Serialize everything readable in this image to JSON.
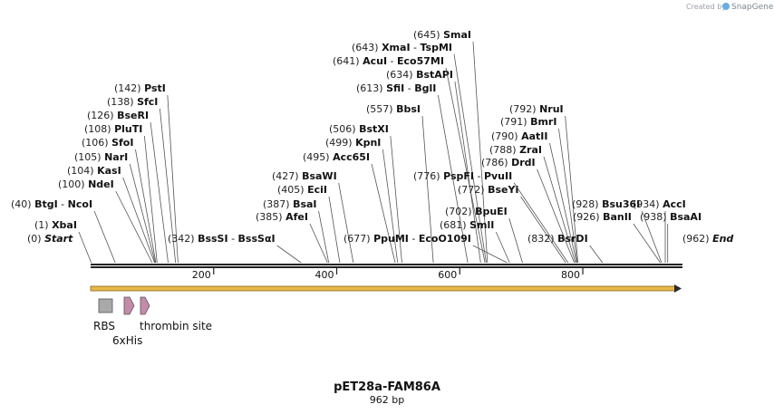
{
  "credit": {
    "prefix": "Created by",
    "brand": "SnapGene"
  },
  "map": {
    "name": "pET28a-FAM86A",
    "length_label": "962 bp",
    "length_bp": 962
  },
  "ticks": [
    200,
    400,
    600,
    800
  ],
  "sites": [
    {
      "pos": "(0)",
      "names": [
        "Start"
      ],
      "bp": 0,
      "italic": true
    },
    {
      "pos": "(1)",
      "names": [
        "XbaI"
      ],
      "bp": 1
    },
    {
      "pos": "(40)",
      "names": [
        "BtgI",
        "NcoI"
      ],
      "bp": 40
    },
    {
      "pos": "(100)",
      "names": [
        "NdeI"
      ],
      "bp": 100
    },
    {
      "pos": "(104)",
      "names": [
        "KasI"
      ],
      "bp": 104
    },
    {
      "pos": "(105)",
      "names": [
        "NarI"
      ],
      "bp": 105
    },
    {
      "pos": "(106)",
      "names": [
        "SfoI"
      ],
      "bp": 106
    },
    {
      "pos": "(108)",
      "names": [
        "PluTI"
      ],
      "bp": 108
    },
    {
      "pos": "(126)",
      "names": [
        "BseRI"
      ],
      "bp": 126
    },
    {
      "pos": "(138)",
      "names": [
        "SfcI"
      ],
      "bp": 138
    },
    {
      "pos": "(142)",
      "names": [
        "PstI"
      ],
      "bp": 142
    },
    {
      "pos": "(342)",
      "names": [
        "BssSI",
        "BssSαI"
      ],
      "bp": 342
    },
    {
      "pos": "(385)",
      "names": [
        "AfeI"
      ],
      "bp": 385
    },
    {
      "pos": "(387)",
      "names": [
        "BsaI"
      ],
      "bp": 387
    },
    {
      "pos": "(405)",
      "names": [
        "EciI"
      ],
      "bp": 405
    },
    {
      "pos": "(427)",
      "names": [
        "BsaWI"
      ],
      "bp": 427
    },
    {
      "pos": "(495)",
      "names": [
        "Acc65I"
      ],
      "bp": 495
    },
    {
      "pos": "(499)",
      "names": [
        "KpnI"
      ],
      "bp": 499
    },
    {
      "pos": "(506)",
      "names": [
        "BstXI"
      ],
      "bp": 506
    },
    {
      "pos": "(557)",
      "names": [
        "BbsI"
      ],
      "bp": 557
    },
    {
      "pos": "(613)",
      "names": [
        "SfiI",
        "BglI"
      ],
      "bp": 613
    },
    {
      "pos": "(634)",
      "names": [
        "BstAPI"
      ],
      "bp": 634
    },
    {
      "pos": "(641)",
      "names": [
        "AcuI",
        "Eco57MI"
      ],
      "bp": 641
    },
    {
      "pos": "(643)",
      "names": [
        "XmaI",
        "TspMI"
      ],
      "bp": 643
    },
    {
      "pos": "(645)",
      "names": [
        "SmaI"
      ],
      "bp": 645
    },
    {
      "pos": "(677)",
      "names": [
        "PpuMI",
        "EcoO109I"
      ],
      "bp": 677
    },
    {
      "pos": "(681)",
      "names": [
        "SmlI"
      ],
      "bp": 681
    },
    {
      "pos": "(702)",
      "names": [
        "BpuEI"
      ],
      "bp": 702
    },
    {
      "pos": "(772)",
      "names": [
        "BseYI"
      ],
      "bp": 772
    },
    {
      "pos": "(776)",
      "names": [
        "PspFI",
        "PvuII"
      ],
      "bp": 776
    },
    {
      "pos": "(786)",
      "names": [
        "DrdI"
      ],
      "bp": 786
    },
    {
      "pos": "(788)",
      "names": [
        "ZraI"
      ],
      "bp": 788
    },
    {
      "pos": "(790)",
      "names": [
        "AatII"
      ],
      "bp": 790
    },
    {
      "pos": "(791)",
      "names": [
        "BmrI"
      ],
      "bp": 791
    },
    {
      "pos": "(792)",
      "names": [
        "NruI"
      ],
      "bp": 792
    },
    {
      "pos": "(832)",
      "names": [
        "BsrDI"
      ],
      "bp": 832
    },
    {
      "pos": "(926)",
      "names": [
        "BanII"
      ],
      "bp": 926
    },
    {
      "pos": "(928)",
      "names": [
        "Bsu36I"
      ],
      "bp": 928
    },
    {
      "pos": "(934)",
      "names": [
        "AccI"
      ],
      "bp": 934
    },
    {
      "pos": "(938)",
      "names": [
        "BsaAI"
      ],
      "bp": 938
    },
    {
      "pos": "(962)",
      "names": [
        "End"
      ],
      "bp": 962,
      "italic": true
    }
  ],
  "features": [
    {
      "name": "RBS",
      "kind": "box",
      "color": "#a9a9a9"
    },
    {
      "name": "6xHis",
      "kind": "arrow",
      "color": "#c48ba9"
    },
    {
      "name": "thrombin site",
      "kind": "arrow",
      "color": "#c48ba9"
    }
  ],
  "orf": {
    "color": "#e8b84a",
    "direction": "forward"
  }
}
